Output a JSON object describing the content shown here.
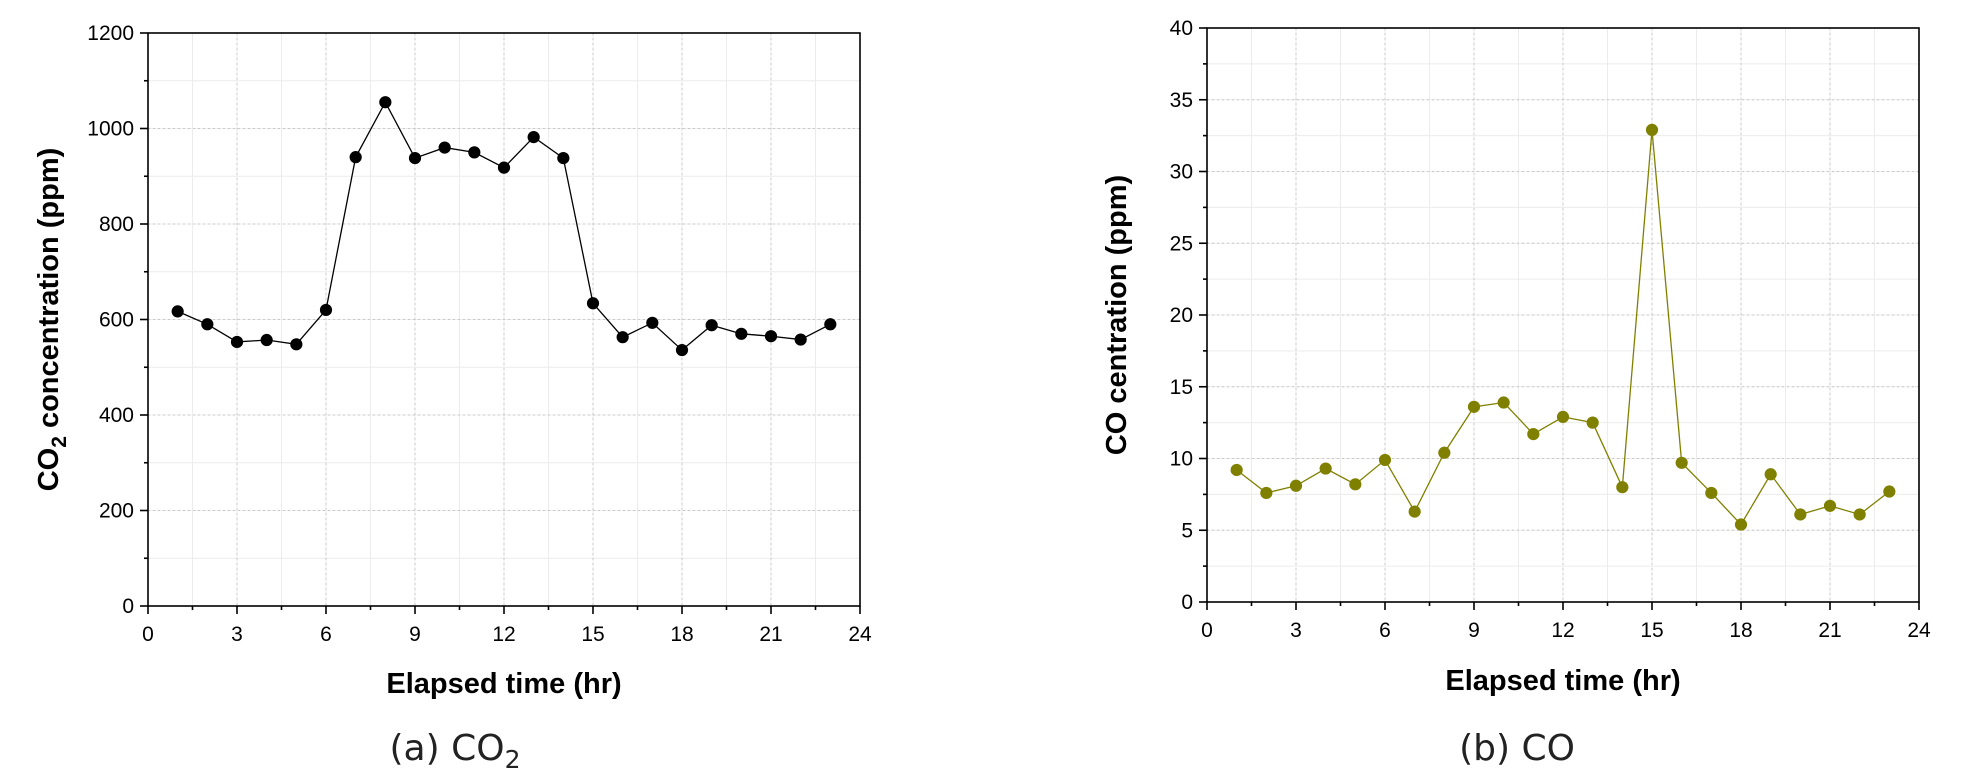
{
  "chart_data": [
    {
      "type": "line",
      "caption": "(a) CO",
      "caption_sub": "2",
      "xlabel": "Elapsed time (hr)",
      "ylabel": "CO",
      "ylabel_sub": "2",
      "ylabel_rest": " concentration (ppm)",
      "xlim": [
        0,
        24
      ],
      "ylim": [
        0,
        1200
      ],
      "xticks": [
        "0",
        "3",
        "6",
        "9",
        "12",
        "15",
        "18",
        "21",
        "24"
      ],
      "yticks": [
        "0",
        "200",
        "400",
        "600",
        "800",
        "1000",
        "1200"
      ],
      "grid": true,
      "series": [
        {
          "name": "CO2",
          "color": "#000000",
          "x": [
            1,
            2,
            3,
            4,
            5,
            6,
            7,
            8,
            9,
            10,
            11,
            12,
            13,
            14,
            15,
            16,
            17,
            18,
            19,
            20,
            21,
            22,
            23
          ],
          "y": [
            617,
            590,
            553,
            557,
            548,
            620,
            940,
            1055,
            938,
            960,
            950,
            918,
            982,
            938,
            634,
            563,
            593,
            536,
            588,
            570,
            565,
            558,
            590
          ]
        }
      ]
    },
    {
      "type": "line",
      "caption": "(b) CO",
      "caption_sub": "",
      "xlabel": "Elapsed time (hr)",
      "ylabel": "CO centration (ppm)",
      "ylabel_sub": "",
      "ylabel_rest": "",
      "xlim": [
        0,
        24
      ],
      "ylim": [
        0,
        40
      ],
      "xticks": [
        "0",
        "3",
        "6",
        "9",
        "12",
        "15",
        "18",
        "21",
        "24"
      ],
      "yticks": [
        "0",
        "5",
        "10",
        "15",
        "20",
        "25",
        "30",
        "35",
        "40"
      ],
      "grid": true,
      "series": [
        {
          "name": "CO",
          "color": "#808000",
          "x": [
            1,
            2,
            3,
            4,
            5,
            6,
            7,
            8,
            9,
            10,
            11,
            12,
            13,
            14,
            15,
            16,
            17,
            18,
            19,
            20,
            21,
            22,
            23
          ],
          "y": [
            9.2,
            7.6,
            8.1,
            9.3,
            8.2,
            9.9,
            6.3,
            10.4,
            13.6,
            13.9,
            11.7,
            12.9,
            12.5,
            8.0,
            32.9,
            9.7,
            7.6,
            5.4,
            8.9,
            6.1,
            6.7,
            6.1,
            7.7
          ]
        }
      ]
    }
  ]
}
